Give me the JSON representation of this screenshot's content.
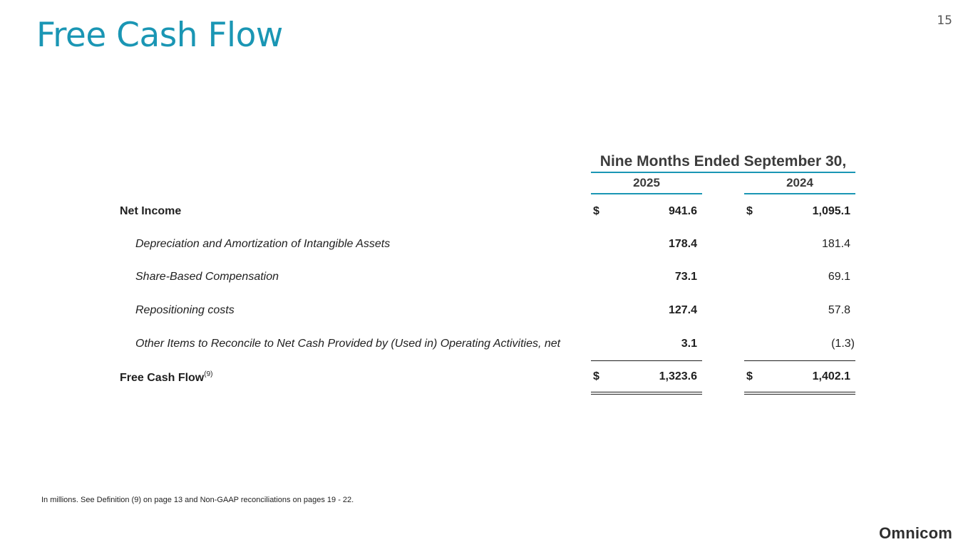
{
  "page": {
    "title": "Free Cash Flow",
    "number": "15",
    "brand": "Omnicom",
    "footnote": "In millions.  See Definition (9) on page 13 and Non-GAAP reconciliations on pages 19 - 22."
  },
  "table": {
    "period_header": "Nine Months Ended September 30,",
    "years": [
      "2025",
      "2024"
    ],
    "rows": [
      {
        "label": "Net Income",
        "currency_2025": "$",
        "value_2025": "941.6",
        "currency_2024": "$",
        "value_2024": "1,095.1"
      },
      {
        "label": "Depreciation and Amortization of Intangible Assets",
        "value_2025": "178.4",
        "value_2024": "181.4"
      },
      {
        "label": "Share-Based Compensation",
        "value_2025": "73.1",
        "value_2024": "69.1"
      },
      {
        "label": "Repositioning costs",
        "value_2025": "127.4",
        "value_2024": "57.8"
      },
      {
        "label": "Other Items to Reconcile to Net Cash Provided by (Used in) Operating Activities, net",
        "value_2025": "3.1",
        "value_2024": "(1.3)"
      }
    ],
    "total": {
      "label": "Free Cash Flow",
      "footnote_ref": "(9)",
      "currency_2025": "$",
      "value_2025": "1,323.6",
      "currency_2024": "$",
      "value_2024": "1,402.1"
    }
  },
  "colors": {
    "accent": "#1a96b4",
    "text": "#1f1f1f"
  }
}
